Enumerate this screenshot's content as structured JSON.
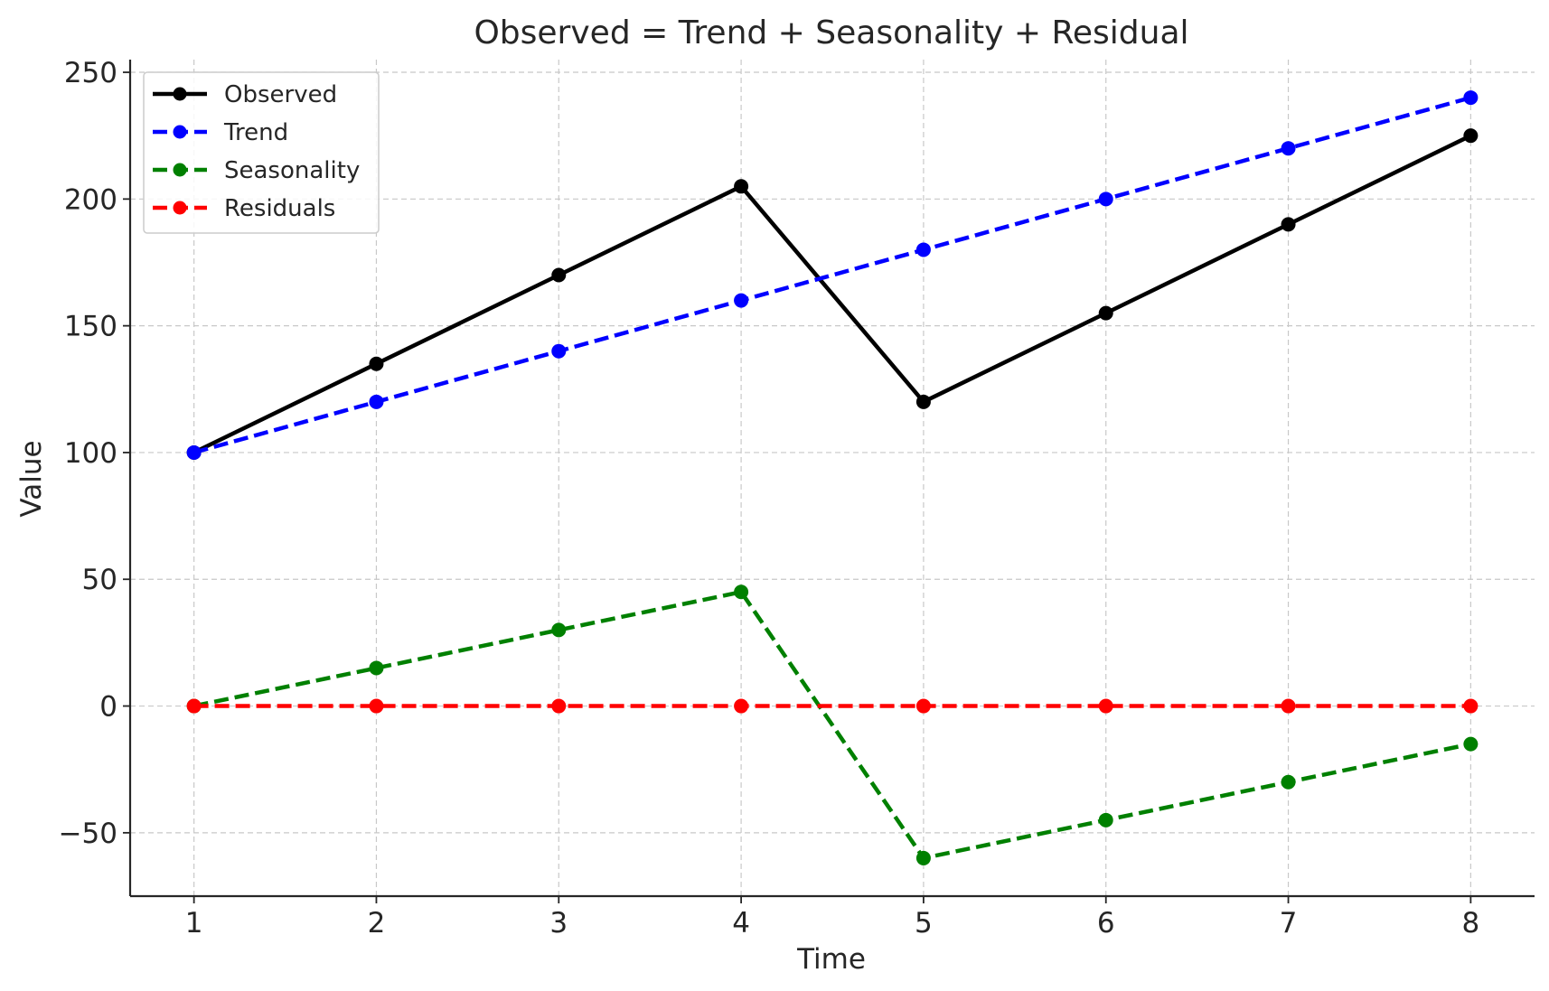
{
  "chart_data": {
    "type": "line",
    "title": "Observed = Trend + Seasonality + Residual",
    "xlabel": "Time",
    "ylabel": "Value",
    "x": [
      1,
      2,
      3,
      4,
      5,
      6,
      7,
      8
    ],
    "xlim": [
      0.65,
      8.35
    ],
    "ylim": [
      -75,
      255
    ],
    "xticks": [
      1,
      2,
      3,
      4,
      5,
      6,
      7,
      8
    ],
    "yticks": [
      -50,
      0,
      50,
      100,
      150,
      200,
      250
    ],
    "ytick_labels": [
      "−50",
      "0",
      "50",
      "100",
      "150",
      "200",
      "250"
    ],
    "grid": true,
    "legend_position": "top-left",
    "series": [
      {
        "name": "Observed",
        "values": [
          100,
          135,
          170,
          205,
          120,
          155,
          190,
          225
        ],
        "color": "#000000",
        "line_style": "solid"
      },
      {
        "name": "Trend",
        "values": [
          100,
          120,
          140,
          160,
          180,
          200,
          220,
          240
        ],
        "color": "#0000ff",
        "line_style": "dashed"
      },
      {
        "name": "Seasonality",
        "values": [
          0,
          15,
          30,
          45,
          -60,
          -45,
          -30,
          -15
        ],
        "color": "#008000",
        "line_style": "dashed"
      },
      {
        "name": "Residuals",
        "values": [
          0,
          0,
          0,
          0,
          0,
          0,
          0,
          0
        ],
        "color": "#ff0000",
        "line_style": "dashed"
      }
    ]
  }
}
